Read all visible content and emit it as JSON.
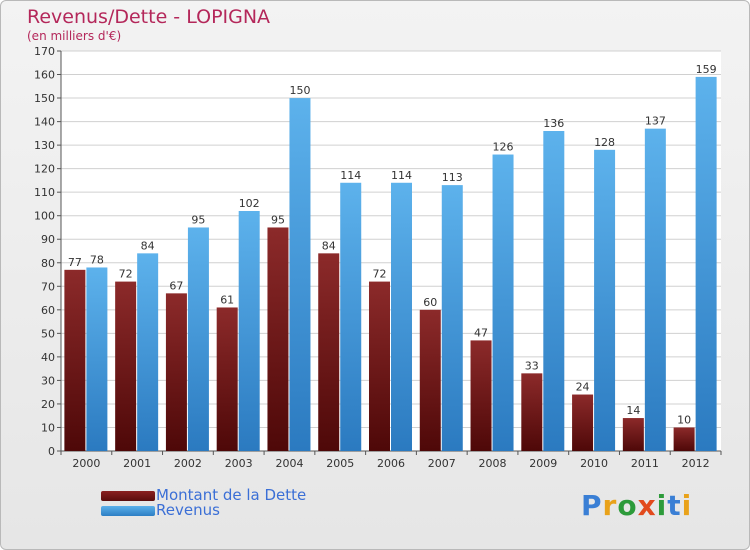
{
  "header": {
    "title": "Revenus/Dette - LOPIGNA",
    "subtitle": "(en milliers d'€)"
  },
  "colors": {
    "dette": "#7a1a1a",
    "revenus": "#4ea3e0",
    "value_label": "#333333",
    "grid": "#d0d0d0",
    "title": "#b4275a"
  },
  "legend": {
    "dette_label": "Montant de la Dette",
    "revenus_label": "Revenus"
  },
  "logo": {
    "text": "Proxiti"
  },
  "chart_data": {
    "type": "bar",
    "title": "Revenus/Dette - LOPIGNA",
    "subtitle": "(en milliers d'€)",
    "xlabel": "",
    "ylabel": "",
    "ylim": [
      0,
      170
    ],
    "ytick_step": 10,
    "grid": true,
    "legend_position": "bottom-left",
    "categories": [
      "2000",
      "2001",
      "2002",
      "2003",
      "2004",
      "2005",
      "2006",
      "2007",
      "2008",
      "2009",
      "2010",
      "2011",
      "2012"
    ],
    "series": [
      {
        "name": "Montant de la Dette",
        "values": [
          77,
          72,
          67,
          61,
          95,
          84,
          72,
          60,
          47,
          33,
          24,
          14,
          10
        ]
      },
      {
        "name": "Revenus",
        "values": [
          78,
          84,
          95,
          102,
          150,
          114,
          114,
          113,
          126,
          136,
          128,
          137,
          159
        ]
      }
    ]
  }
}
